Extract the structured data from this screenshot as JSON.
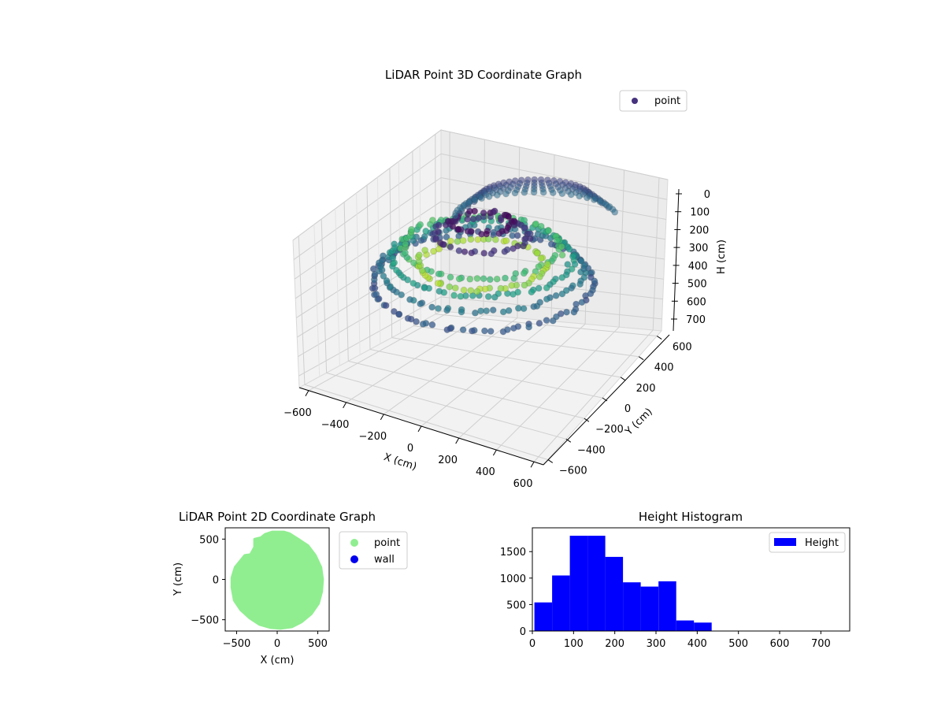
{
  "chart_data": [
    {
      "type": "scatter3d",
      "title": "LiDAR Point 3D Coordinate Graph",
      "xlabel": "X (cm)",
      "ylabel": "Y (cm)",
      "zlabel": "H (cm)",
      "xlim": [
        -650,
        650
      ],
      "ylim": [
        -650,
        650
      ],
      "zlim": [
        0,
        760
      ],
      "z_inverted": true,
      "xticks": [
        -600,
        -400,
        -200,
        0,
        200,
        400,
        600
      ],
      "yticks": [
        -600,
        -400,
        -200,
        0,
        200,
        400,
        600
      ],
      "zticks": [
        0,
        100,
        200,
        300,
        400,
        500,
        600,
        700
      ],
      "colormap": "viridis",
      "legend": {
        "placement": "upper-right",
        "entries": [
          {
            "label": "point",
            "color": "#46327e"
          }
        ]
      },
      "grid": true
    },
    {
      "type": "scatter",
      "title": "LiDAR Point 2D Coordinate Graph",
      "xlabel": "X (cm)",
      "ylabel": "Y (cm)",
      "xlim": [
        -640,
        640
      ],
      "ylim": [
        -640,
        640
      ],
      "xticks": [
        -500,
        0,
        500
      ],
      "yticks": [
        -500,
        0,
        500
      ],
      "series": [
        {
          "name": "point",
          "color": "#90ee90"
        },
        {
          "name": "wall",
          "color": "#0000ee"
        }
      ],
      "region_outline": [
        [
          -60,
          590
        ],
        [
          80,
          590
        ],
        [
          150,
          570
        ],
        [
          260,
          500
        ],
        [
          380,
          420
        ],
        [
          470,
          300
        ],
        [
          540,
          150
        ],
        [
          560,
          0
        ],
        [
          550,
          -150
        ],
        [
          510,
          -300
        ],
        [
          420,
          -430
        ],
        [
          300,
          -530
        ],
        [
          180,
          -590
        ],
        [
          40,
          -610
        ],
        [
          -80,
          -600
        ],
        [
          -220,
          -560
        ],
        [
          -340,
          -480
        ],
        [
          -450,
          -380
        ],
        [
          -530,
          -260
        ],
        [
          -560,
          -100
        ],
        [
          -560,
          20
        ],
        [
          -520,
          150
        ],
        [
          -440,
          250
        ],
        [
          -400,
          300
        ],
        [
          -330,
          310
        ],
        [
          -280,
          400
        ],
        [
          -280,
          500
        ],
        [
          -200,
          520
        ],
        [
          -150,
          560
        ]
      ],
      "legend": {
        "placement": "outside-right"
      }
    },
    {
      "type": "bar",
      "title": "Height Histogram",
      "xlim": [
        0,
        770
      ],
      "ylim": [
        0,
        1950
      ],
      "xticks": [
        0,
        100,
        200,
        300,
        400,
        500,
        600,
        700
      ],
      "yticks": [
        0,
        500,
        1000,
        1500
      ],
      "bin_edges": [
        5,
        48,
        91,
        134,
        177,
        220,
        263,
        306,
        349,
        392,
        435
      ],
      "values": [
        540,
        1050,
        1800,
        1800,
        1400,
        920,
        840,
        940,
        200,
        160
      ],
      "color": "#0000ff",
      "series_name": "Height",
      "legend": {
        "placement": "upper-right"
      }
    }
  ]
}
